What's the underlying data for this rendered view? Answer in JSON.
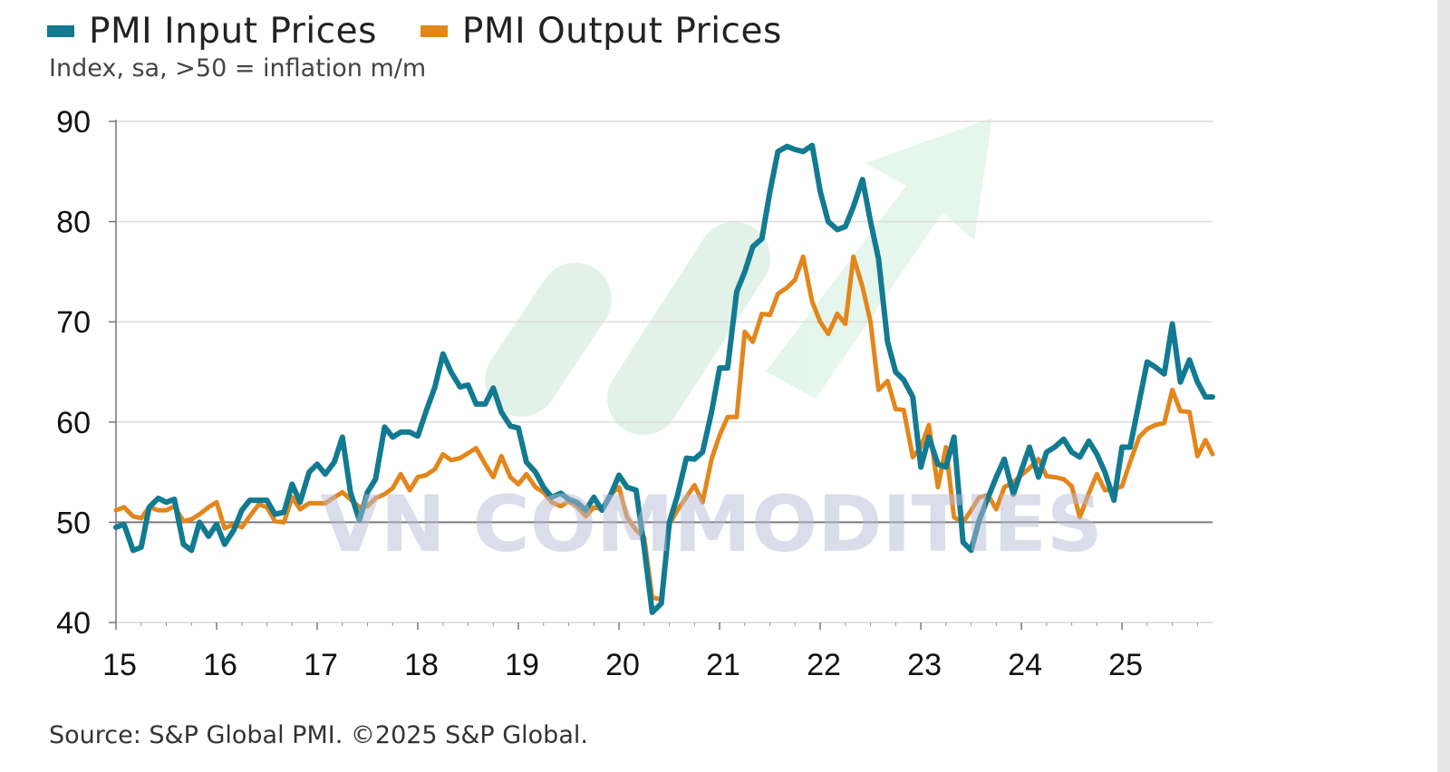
{
  "chart_data": {
    "type": "line",
    "subtitle": "Index, sa, >50 = inflation m/m",
    "source": "Source: S&P Global PMI. ©2025 S&P Global.",
    "watermark": "VN COMMODITIES",
    "xlabel": "",
    "ylabel": "",
    "xlim": [
      2015.0,
      2025.9
    ],
    "ylim": [
      40,
      90
    ],
    "yticks": [
      40,
      50,
      60,
      70,
      80,
      90
    ],
    "xtick_labels": [
      "15",
      "16",
      "17",
      "18",
      "19",
      "20",
      "21",
      "22",
      "23",
      "24",
      "25"
    ],
    "grid": true,
    "legend_position": "top-left",
    "series": [
      {
        "name": "PMI Input Prices",
        "color": "#127a91",
        "x": [
          2015.0,
          2015.08,
          2015.17,
          2015.25,
          2015.33,
          2015.42,
          2015.5,
          2015.58,
          2015.67,
          2015.75,
          2015.83,
          2015.92,
          2016.0,
          2016.08,
          2016.17,
          2016.25,
          2016.33,
          2016.42,
          2016.5,
          2016.58,
          2016.67,
          2016.75,
          2016.83,
          2016.92,
          2017.0,
          2017.08,
          2017.17,
          2017.25,
          2017.33,
          2017.42,
          2017.5,
          2017.58,
          2017.67,
          2017.75,
          2017.83,
          2017.92,
          2018.0,
          2018.08,
          2018.17,
          2018.25,
          2018.33,
          2018.42,
          2018.5,
          2018.58,
          2018.67,
          2018.75,
          2018.83,
          2018.92,
          2019.0,
          2019.08,
          2019.17,
          2019.25,
          2019.33,
          2019.42,
          2019.5,
          2019.58,
          2019.67,
          2019.75,
          2019.83,
          2019.92,
          2020.0,
          2020.08,
          2020.17,
          2020.25,
          2020.33,
          2020.42,
          2020.5,
          2020.58,
          2020.67,
          2020.75,
          2020.83,
          2020.92,
          2021.0,
          2021.08,
          2021.17,
          2021.25,
          2021.33,
          2021.42,
          2021.5,
          2021.58,
          2021.67,
          2021.75,
          2021.83,
          2021.92,
          2022.0,
          2022.08,
          2022.17,
          2022.25,
          2022.33,
          2022.42,
          2022.5,
          2022.58,
          2022.67,
          2022.75,
          2022.83,
          2022.92,
          2023.0,
          2023.08,
          2023.17,
          2023.25,
          2023.33,
          2023.42,
          2023.5,
          2023.58,
          2023.67,
          2023.75,
          2023.83,
          2023.92,
          2024.0,
          2024.08,
          2024.17,
          2024.25,
          2024.33,
          2024.42,
          2024.5,
          2024.58,
          2024.67,
          2024.75,
          2024.83,
          2024.92,
          2025.0,
          2025.08,
          2025.17,
          2025.25,
          2025.33,
          2025.42,
          2025.5,
          2025.58,
          2025.67,
          2025.75,
          2025.83,
          2025.9
        ],
        "values": [
          49.5,
          49.8,
          47.2,
          47.5,
          51.5,
          52.4,
          52.0,
          52.3,
          47.8,
          47.2,
          50.0,
          48.6,
          49.8,
          47.8,
          49.2,
          51.2,
          52.2,
          52.2,
          52.2,
          50.8,
          51.0,
          53.8,
          52.0,
          55.0,
          55.8,
          54.8,
          56.0,
          58.5,
          53.0,
          50.2,
          53.0,
          54.3,
          59.5,
          58.5,
          59.0,
          59.0,
          58.6,
          61.0,
          63.5,
          66.8,
          65.0,
          63.5,
          63.7,
          61.8,
          61.8,
          63.4,
          61.0,
          59.6,
          59.4,
          56.0,
          55.0,
          53.5,
          52.5,
          52.9,
          52.3,
          52.0,
          51.2,
          52.5,
          51.2,
          52.8,
          54.7,
          53.5,
          53.2,
          47.5,
          41.0,
          41.9,
          50.0,
          52.6,
          56.4,
          56.3,
          57.0,
          61.0,
          65.4,
          65.4,
          73.0,
          75.0,
          77.5,
          78.3,
          83.0,
          87.0,
          87.5,
          87.2,
          87.0,
          87.6,
          83.0,
          80.0,
          79.2,
          79.5,
          81.5,
          84.2,
          80.0,
          76.3,
          68.0,
          65.0,
          64.2,
          62.5,
          55.5,
          58.5,
          55.8,
          55.5,
          58.5,
          48.0,
          47.2,
          50.2,
          52.5,
          54.5,
          56.3,
          52.8,
          55.2,
          57.5,
          54.5,
          57.0,
          57.5,
          58.3,
          57.0,
          56.5,
          58.1,
          56.8,
          55.0,
          52.2,
          57.5,
          57.5,
          62.0,
          66.0,
          65.5,
          64.8,
          69.8,
          64.0,
          66.2,
          64.0,
          62.5,
          62.5
        ]
      },
      {
        "name": "PMI Output Prices",
        "color": "#e3861b",
        "x": [
          2015.0,
          2015.08,
          2015.17,
          2015.25,
          2015.33,
          2015.42,
          2015.5,
          2015.58,
          2015.67,
          2015.75,
          2015.83,
          2015.92,
          2016.0,
          2016.08,
          2016.17,
          2016.25,
          2016.33,
          2016.42,
          2016.5,
          2016.58,
          2016.67,
          2016.75,
          2016.83,
          2016.92,
          2017.0,
          2017.08,
          2017.17,
          2017.25,
          2017.33,
          2017.42,
          2017.5,
          2017.58,
          2017.67,
          2017.75,
          2017.83,
          2017.92,
          2018.0,
          2018.08,
          2018.17,
          2018.25,
          2018.33,
          2018.42,
          2018.5,
          2018.58,
          2018.67,
          2018.75,
          2018.83,
          2018.92,
          2019.0,
          2019.08,
          2019.17,
          2019.25,
          2019.33,
          2019.42,
          2019.5,
          2019.58,
          2019.67,
          2019.75,
          2019.83,
          2019.92,
          2020.0,
          2020.08,
          2020.17,
          2020.25,
          2020.33,
          2020.42,
          2020.5,
          2020.58,
          2020.67,
          2020.75,
          2020.83,
          2020.92,
          2021.0,
          2021.08,
          2021.17,
          2021.25,
          2021.33,
          2021.42,
          2021.5,
          2021.58,
          2021.67,
          2021.75,
          2021.83,
          2021.92,
          2022.0,
          2022.08,
          2022.17,
          2022.25,
          2022.33,
          2022.42,
          2022.5,
          2022.58,
          2022.67,
          2022.75,
          2022.83,
          2022.92,
          2023.0,
          2023.08,
          2023.17,
          2023.25,
          2023.33,
          2023.42,
          2023.5,
          2023.58,
          2023.67,
          2023.75,
          2023.83,
          2023.92,
          2024.0,
          2024.08,
          2024.17,
          2024.25,
          2024.33,
          2024.42,
          2024.5,
          2024.58,
          2024.67,
          2024.75,
          2024.83,
          2024.92,
          2025.0,
          2025.08,
          2025.17,
          2025.25,
          2025.33,
          2025.42,
          2025.5,
          2025.58,
          2025.67,
          2025.75,
          2025.83,
          2025.9
        ],
        "values": [
          51.2,
          51.5,
          50.6,
          50.4,
          51.5,
          51.2,
          51.2,
          51.6,
          50.1,
          50.3,
          50.8,
          51.5,
          52.0,
          49.4,
          49.8,
          49.5,
          50.6,
          51.8,
          51.5,
          50.1,
          50.0,
          52.5,
          51.3,
          51.9,
          51.9,
          51.9,
          52.5,
          53.0,
          52.3,
          51.5,
          51.6,
          52.4,
          52.8,
          53.4,
          54.8,
          53.2,
          54.5,
          54.7,
          55.3,
          56.8,
          56.2,
          56.4,
          56.9,
          57.4,
          55.8,
          54.5,
          56.6,
          54.5,
          53.8,
          54.8,
          53.5,
          53.0,
          52.0,
          51.6,
          52.1,
          51.6,
          50.6,
          51.5,
          51.3,
          52.8,
          53.5,
          50.5,
          49.2,
          48.5,
          42.5,
          42.3,
          49.8,
          51.2,
          52.5,
          53.7,
          52.0,
          56.3,
          58.7,
          60.5,
          60.5,
          69.0,
          68.0,
          70.8,
          70.7,
          72.8,
          73.4,
          74.2,
          76.5,
          72.0,
          70.0,
          68.8,
          70.8,
          69.8,
          76.5,
          73.5,
          70.0,
          63.2,
          64.1,
          61.3,
          61.2,
          56.5,
          57.5,
          59.7,
          53.5,
          57.5,
          50.5,
          50.0,
          51.2,
          52.5,
          52.7,
          51.3,
          53.5,
          54.0,
          54.7,
          55.4,
          56.3,
          54.6,
          54.5,
          54.3,
          53.6,
          50.5,
          52.9,
          54.8,
          53.2,
          53.3,
          53.6,
          56.0,
          58.5,
          59.3,
          59.7,
          59.9,
          63.2,
          61.1,
          61.0,
          56.6,
          58.2,
          56.8
        ]
      }
    ]
  }
}
